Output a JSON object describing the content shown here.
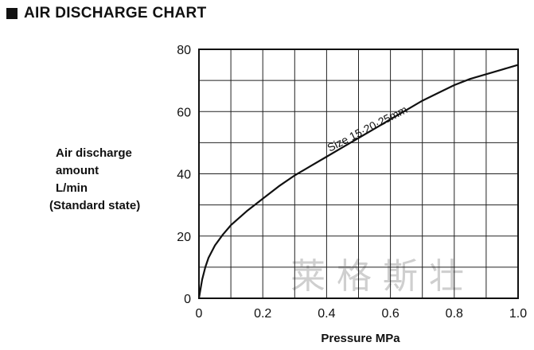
{
  "header": {
    "title": "AIR DISCHARGE CHART"
  },
  "y_axis_label": {
    "line1": "Air discharge",
    "line2": "amount",
    "line3": "L/min",
    "line4": "(Standard state)"
  },
  "watermark": "莱格斯壮",
  "chart_data": {
    "type": "line",
    "title": "AIR DISCHARGE CHART",
    "xlabel": "Pressure MPa",
    "ylabel": "Air discharge amount L/min (Standard state)",
    "xlim": [
      0,
      1.0
    ],
    "ylim": [
      0,
      80
    ],
    "x_ticks": [
      "0",
      "0.2",
      "0.4",
      "0.6",
      "0.8",
      "1.0"
    ],
    "y_ticks": [
      "0",
      "20",
      "40",
      "60",
      "80"
    ],
    "grid": true,
    "series": [
      {
        "name": "Size 15·20·25mm",
        "x": [
          0,
          0.01,
          0.02,
          0.03,
          0.05,
          0.075,
          0.1,
          0.15,
          0.2,
          0.25,
          0.3,
          0.35,
          0.4,
          0.45,
          0.5,
          0.55,
          0.6,
          0.65,
          0.7,
          0.75,
          0.8,
          0.85,
          0.9,
          0.95,
          1.0
        ],
        "values": [
          0,
          6,
          10,
          13,
          17,
          20.5,
          23.5,
          28,
          32,
          36,
          39.5,
          42.5,
          45.5,
          48.5,
          51.5,
          54.5,
          57.5,
          60.5,
          63.5,
          66,
          68.5,
          70.5,
          72,
          73.5,
          75
        ]
      }
    ],
    "annotations": [
      {
        "text": "Size 15·20·25mm"
      }
    ]
  }
}
